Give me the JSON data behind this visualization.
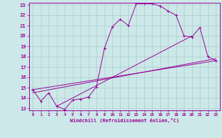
{
  "xlabel": "Windchill (Refroidissement éolien,°C)",
  "background_color": "#cce8e8",
  "grid_color": "#aacccc",
  "line_color": "#990099",
  "xlim": [
    -0.5,
    23.5
  ],
  "ylim": [
    12.8,
    23.2
  ],
  "yticks": [
    13,
    14,
    15,
    16,
    17,
    18,
    19,
    20,
    21,
    22,
    23
  ],
  "xticks": [
    0,
    1,
    2,
    3,
    4,
    5,
    6,
    7,
    8,
    9,
    10,
    11,
    12,
    13,
    14,
    15,
    16,
    17,
    18,
    19,
    20,
    21,
    22,
    23
  ],
  "series0_x": [
    0,
    1,
    2,
    3,
    4,
    5,
    6,
    7,
    8,
    9,
    10,
    11,
    12,
    13,
    14,
    15,
    16,
    17,
    18,
    19,
    20,
    21,
    22,
    23
  ],
  "series0_y": [
    14.8,
    13.7,
    14.5,
    13.2,
    12.9,
    13.8,
    13.9,
    14.1,
    15.1,
    18.8,
    20.9,
    21.6,
    21.0,
    23.1,
    23.1,
    23.1,
    22.9,
    22.4,
    22.0,
    20.0,
    19.9,
    20.8,
    18.0,
    17.6
  ],
  "series1_x": [
    0,
    23
  ],
  "series1_y": [
    14.8,
    17.6
  ],
  "series2_x": [
    0,
    23
  ],
  "series2_y": [
    14.5,
    17.8
  ],
  "series3_x": [
    3,
    20
  ],
  "series3_y": [
    13.2,
    20.0
  ]
}
